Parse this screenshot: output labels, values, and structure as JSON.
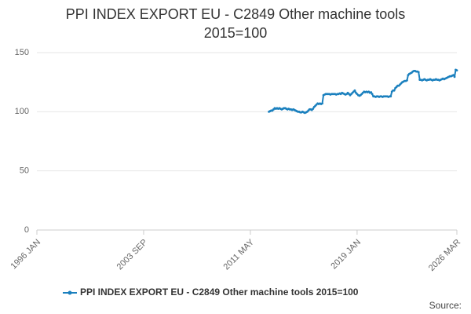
{
  "chart_data": {
    "type": "line",
    "title": "PPI INDEX EXPORT EU - C2849 Other machine tools 2015=100",
    "source": "Source:",
    "categories": [
      "1996 JAN",
      null,
      null,
      null,
      null,
      null,
      null,
      null,
      null,
      null,
      null,
      null,
      null,
      null,
      null,
      null,
      null,
      null,
      null,
      null,
      null,
      null,
      null,
      null,
      null,
      null,
      null,
      null,
      null,
      null,
      null,
      null,
      null,
      null,
      null,
      null,
      null,
      null,
      null,
      null,
      null,
      null,
      null,
      null,
      null,
      null,
      null,
      null,
      null,
      null,
      null,
      null,
      null,
      null,
      null,
      null,
      null,
      null,
      null,
      null,
      null,
      null,
      null,
      null,
      null,
      null,
      null,
      null,
      null,
      null,
      null,
      null,
      null,
      null,
      null,
      null,
      null,
      null,
      null,
      null,
      null,
      null,
      null,
      null,
      null,
      null,
      null,
      null,
      null,
      null,
      null,
      null,
      "2003 SEP",
      null,
      null,
      null,
      null,
      null,
      null,
      null,
      null,
      null,
      null,
      null,
      null,
      null,
      null,
      null,
      null,
      null,
      null,
      null,
      null,
      null,
      null,
      null,
      null,
      null,
      null,
      null,
      null,
      null,
      null,
      null,
      null,
      null,
      null,
      null,
      null,
      null,
      null,
      null,
      null,
      null,
      null,
      null,
      null,
      null,
      null,
      null,
      null,
      null,
      null,
      null,
      null,
      null,
      null,
      null,
      null,
      null,
      null,
      null,
      null,
      null,
      null,
      null,
      null,
      null,
      null,
      null,
      null,
      null,
      null,
      null,
      null,
      null,
      null,
      null,
      null,
      null,
      null,
      null,
      null,
      null,
      null,
      null,
      null,
      null,
      null,
      null,
      null,
      null,
      null,
      null,
      "2011 MAY",
      null,
      null,
      null,
      null,
      null,
      null,
      null,
      null,
      null,
      null,
      null,
      null,
      null,
      null,
      null,
      null,
      null,
      null,
      null,
      null,
      null,
      null,
      null,
      null,
      null,
      null,
      null,
      null,
      null,
      null,
      null,
      null,
      null,
      null,
      null,
      null,
      null,
      null,
      null,
      null,
      null,
      null,
      null,
      null,
      null,
      null,
      null,
      null,
      null,
      null,
      null,
      null,
      null,
      null,
      null,
      null,
      null,
      null,
      null,
      null,
      null,
      null,
      null,
      null,
      null,
      null,
      null,
      null,
      null,
      null,
      null,
      null,
      null,
      null,
      null,
      null,
      null,
      null,
      null,
      null,
      null,
      null,
      null,
      null,
      null,
      null,
      null,
      null,
      null,
      null,
      null,
      "2019 JAN",
      null,
      null,
      null,
      null,
      null,
      null,
      null,
      null,
      null,
      null,
      null,
      null,
      null,
      null,
      null,
      null,
      null,
      null,
      null,
      null,
      null,
      null,
      null,
      null,
      null,
      null,
      null,
      null,
      null,
      null,
      null,
      null,
      null,
      null,
      null,
      null,
      null,
      null,
      null,
      null,
      null,
      null,
      null,
      null,
      null,
      null,
      null,
      null,
      null,
      null,
      null,
      null,
      null,
      null,
      null,
      null,
      null,
      null,
      null,
      null,
      null,
      null,
      null,
      null,
      null,
      null,
      null,
      null,
      null,
      null,
      null,
      null,
      null,
      null,
      null,
      null,
      null,
      null,
      null,
      null,
      null,
      null,
      null,
      null,
      null,
      "2026 MAR"
    ],
    "series": [
      {
        "name": "PPI INDEX EXPORT EU - C2849 Other machine tools 2015=100",
        "color": "#1b80be",
        "values": [
          null,
          null,
          null,
          null,
          null,
          null,
          null,
          null,
          null,
          null,
          null,
          null,
          null,
          null,
          null,
          null,
          null,
          null,
          null,
          null,
          null,
          null,
          null,
          null,
          null,
          null,
          null,
          null,
          null,
          null,
          null,
          null,
          null,
          null,
          null,
          null,
          null,
          null,
          null,
          null,
          null,
          null,
          null,
          null,
          null,
          null,
          null,
          null,
          null,
          null,
          null,
          null,
          null,
          null,
          null,
          null,
          null,
          null,
          null,
          null,
          null,
          null,
          null,
          null,
          null,
          null,
          null,
          null,
          null,
          null,
          null,
          null,
          null,
          null,
          null,
          null,
          null,
          null,
          null,
          null,
          null,
          null,
          null,
          null,
          null,
          null,
          null,
          null,
          null,
          null,
          null,
          null,
          null,
          null,
          null,
          null,
          null,
          null,
          null,
          null,
          null,
          null,
          null,
          null,
          null,
          null,
          null,
          null,
          null,
          null,
          null,
          null,
          null,
          null,
          null,
          null,
          null,
          null,
          null,
          null,
          null,
          null,
          null,
          null,
          null,
          null,
          null,
          null,
          null,
          null,
          null,
          null,
          null,
          null,
          null,
          null,
          null,
          null,
          null,
          null,
          null,
          null,
          null,
          null,
          null,
          null,
          null,
          null,
          null,
          null,
          null,
          null,
          null,
          null,
          null,
          null,
          null,
          null,
          null,
          null,
          null,
          null,
          null,
          null,
          null,
          null,
          null,
          null,
          null,
          null,
          null,
          null,
          null,
          null,
          null,
          null,
          null,
          null,
          null,
          null,
          null,
          null,
          null,
          null,
          null,
          null,
          null,
          null,
          null,
          null,
          null,
          null,
          null,
          null,
          null,
          null,
          null,
          null,
          null,
          null,
          100,
          100.5,
          101,
          101,
          102,
          103,
          102.5,
          103,
          102.5,
          103,
          102.5,
          102,
          102.5,
          103,
          103,
          102.5,
          102,
          102.5,
          102,
          102,
          101.5,
          102,
          101.5,
          101,
          100.5,
          100,
          100,
          99.5,
          99.5,
          100,
          99.5,
          99,
          99.5,
          100,
          101,
          102,
          102,
          101.5,
          102.5,
          104,
          105,
          106,
          107,
          106.5,
          107,
          106.5,
          107,
          114,
          114.5,
          115,
          115,
          115,
          115,
          114.5,
          115,
          115,
          115,
          115,
          114.5,
          115,
          115,
          115.5,
          115,
          116,
          115.5,
          115,
          114.5,
          115,
          116,
          115,
          114,
          115,
          116,
          117,
          118,
          116,
          115,
          114,
          113.5,
          114,
          115,
          116,
          117,
          116.5,
          117,
          116.5,
          117,
          116,
          116.5,
          115,
          113,
          113,
          112.5,
          113,
          113,
          112.5,
          113,
          113,
          112.5,
          113,
          113,
          113,
          113,
          112.5,
          113,
          113,
          117,
          118,
          118,
          120,
          121,
          122,
          122,
          123,
          124,
          125,
          125.5,
          126,
          126,
          126.5,
          131,
          132,
          132.5,
          133,
          134,
          134.5,
          134.5,
          134,
          134,
          133.5,
          127,
          127,
          126.5,
          127,
          127.5,
          127,
          126.5,
          127,
          127,
          127.5,
          127,
          126.5,
          127,
          127,
          127.5,
          127,
          127,
          126.5,
          127,
          127.5,
          128,
          127.5,
          128,
          128.5,
          129,
          129.5,
          130,
          130,
          130.5,
          131,
          129.5,
          135.5,
          135
        ]
      }
    ],
    "ylim": [
      0,
      150
    ],
    "yticks": [
      0,
      50,
      100,
      150
    ],
    "grid": true
  }
}
